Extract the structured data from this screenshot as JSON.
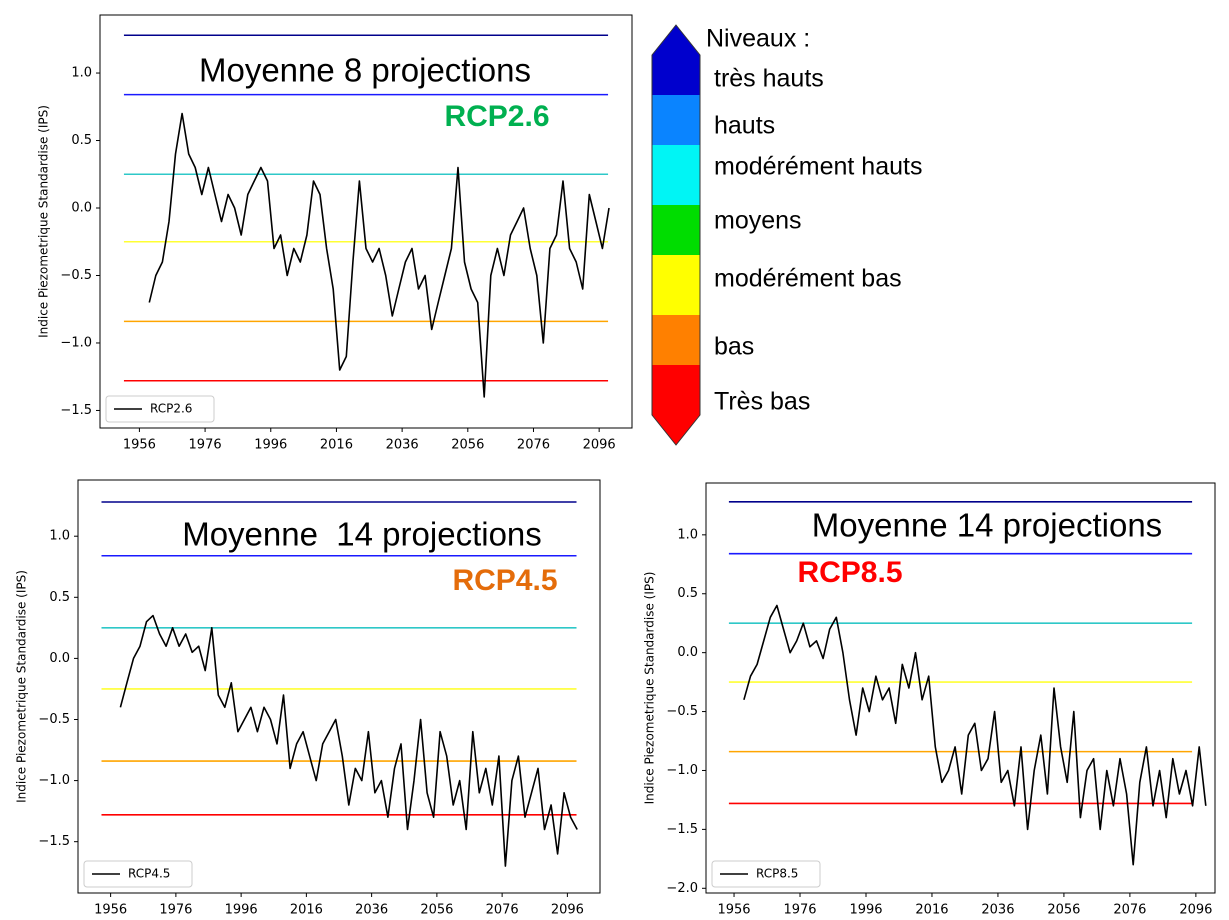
{
  "chart_data": [
    {
      "type": "line",
      "title": "Moyenne 8 projections",
      "annotation": {
        "text": "RCP2.6",
        "color": "#00b050"
      },
      "y_label": "Indice Piezometrique Standardise (IPS)",
      "legend": "lower left",
      "grid": false,
      "xlim": [
        1944,
        2106
      ],
      "xticks": [
        1956,
        1976,
        1996,
        2016,
        2036,
        2056,
        2076,
        2096
      ],
      "ylim": [
        -1.63,
        1.43
      ],
      "yticks": [
        {
          "value": -1.5,
          "label": "−1.5"
        },
        {
          "value": -1,
          "label": "−1.0"
        },
        {
          "value": -0.5,
          "label": "−0.5"
        },
        {
          "value": 0,
          "label": "0.0"
        },
        0.5,
        {
          "value": 1,
          "label": "1.0"
        }
      ],
      "hlines": [
        {
          "value": 1.28,
          "color": "#00008b"
        },
        {
          "value": 0.84,
          "color": "#1a1aff"
        },
        {
          "value": 0.25,
          "color": "#2ec8c8"
        },
        {
          "value": -0.25,
          "color": "#ffff33"
        },
        {
          "value": -0.84,
          "color": "#ffa500"
        },
        {
          "value": -1.28,
          "color": "#ff0000"
        }
      ],
      "x": [
        1959,
        1961,
        1963,
        1965,
        1967,
        1969,
        1971,
        1973,
        1975,
        1977,
        1979,
        1981,
        1983,
        1985,
        1987,
        1989,
        1991,
        1993,
        1995,
        1997,
        1999,
        2001,
        2003,
        2005,
        2007,
        2009,
        2011,
        2013,
        2015,
        2017,
        2019,
        2021,
        2023,
        2025,
        2027,
        2029,
        2031,
        2033,
        2035,
        2037,
        2039,
        2041,
        2043,
        2045,
        2047,
        2049,
        2051,
        2053,
        2055,
        2057,
        2059,
        2061,
        2063,
        2065,
        2067,
        2069,
        2071,
        2073,
        2075,
        2077,
        2079,
        2081,
        2083,
        2085,
        2087,
        2089,
        2091,
        2093,
        2095,
        2097,
        2099
      ],
      "series": [
        {
          "name": "RCP2.6",
          "color": "#000000",
          "values": [
            -0.7,
            -0.5,
            -0.4,
            -0.1,
            0.4,
            0.7,
            0.4,
            0.3,
            0.1,
            0.3,
            0.1,
            -0.1,
            0.1,
            0.0,
            -0.2,
            0.1,
            0.2,
            0.3,
            0.2,
            -0.3,
            -0.2,
            -0.5,
            -0.3,
            -0.4,
            -0.2,
            0.2,
            0.1,
            -0.3,
            -0.6,
            -1.2,
            -1.1,
            -0.4,
            0.2,
            -0.3,
            -0.4,
            -0.3,
            -0.5,
            -0.8,
            -0.6,
            -0.4,
            -0.3,
            -0.6,
            -0.5,
            -0.9,
            -0.7,
            -0.5,
            -0.3,
            0.3,
            -0.4,
            -0.6,
            -0.7,
            -1.4,
            -0.5,
            -0.3,
            -0.5,
            -0.2,
            -0.1,
            0.0,
            -0.3,
            -0.5,
            -1.0,
            -0.3,
            -0.2,
            0.2,
            -0.3,
            -0.4,
            -0.6,
            0.1,
            -0.1,
            -0.3,
            0.0
          ]
        }
      ]
    },
    {
      "type": "line",
      "title": "Moyenne  14 projections",
      "annotation": {
        "text": "RCP4.5",
        "color": "#e46c0a"
      },
      "y_label": "Indice Piezometrique Standardise (IPS)",
      "legend": "lower left",
      "grid": false,
      "xlim": [
        1946,
        2106
      ],
      "xticks": [
        1956,
        1976,
        1996,
        2016,
        2036,
        2056,
        2076,
        2096
      ],
      "ylim": [
        -1.92,
        1.46
      ],
      "yticks": [
        {
          "value": -1.5,
          "label": "−1.5"
        },
        {
          "value": -1,
          "label": "−1.0"
        },
        {
          "value": -0.5,
          "label": "−0.5"
        },
        {
          "value": 0,
          "label": "0.0"
        },
        0.5,
        {
          "value": 1,
          "label": "1.0"
        }
      ],
      "hlines": [
        {
          "value": 1.28,
          "color": "#00008b"
        },
        {
          "value": 0.84,
          "color": "#1a1aff"
        },
        {
          "value": 0.25,
          "color": "#2ec8c8"
        },
        {
          "value": -0.25,
          "color": "#ffff33"
        },
        {
          "value": -0.84,
          "color": "#ffa500"
        },
        {
          "value": -1.28,
          "color": "#ff0000"
        }
      ],
      "x": [
        1959,
        1961,
        1963,
        1965,
        1967,
        1969,
        1971,
        1973,
        1975,
        1977,
        1979,
        1981,
        1983,
        1985,
        1987,
        1989,
        1991,
        1993,
        1995,
        1997,
        1999,
        2001,
        2003,
        2005,
        2007,
        2009,
        2011,
        2013,
        2015,
        2017,
        2019,
        2021,
        2023,
        2025,
        2027,
        2029,
        2031,
        2033,
        2035,
        2037,
        2039,
        2041,
        2043,
        2045,
        2047,
        2049,
        2051,
        2053,
        2055,
        2057,
        2059,
        2061,
        2063,
        2065,
        2067,
        2069,
        2071,
        2073,
        2075,
        2077,
        2079,
        2081,
        2083,
        2085,
        2087,
        2089,
        2091,
        2093,
        2095,
        2097,
        2099
      ],
      "series": [
        {
          "name": "RCP4.5",
          "color": "#000000",
          "values": [
            -0.4,
            -0.2,
            0.0,
            0.1,
            0.3,
            0.35,
            0.2,
            0.1,
            0.25,
            0.1,
            0.2,
            0.05,
            0.1,
            -0.1,
            0.25,
            -0.3,
            -0.4,
            -0.2,
            -0.6,
            -0.5,
            -0.4,
            -0.6,
            -0.4,
            -0.5,
            -0.7,
            -0.3,
            -0.9,
            -0.7,
            -0.6,
            -0.8,
            -1.0,
            -0.7,
            -0.6,
            -0.5,
            -0.8,
            -1.2,
            -0.9,
            -1.0,
            -0.6,
            -1.1,
            -1.0,
            -1.3,
            -0.9,
            -0.7,
            -1.4,
            -1.0,
            -0.5,
            -1.1,
            -1.3,
            -0.6,
            -0.8,
            -1.2,
            -1.0,
            -1.4,
            -0.6,
            -1.1,
            -0.9,
            -1.2,
            -0.8,
            -1.7,
            -1.0,
            -0.8,
            -1.3,
            -1.1,
            -0.9,
            -1.4,
            -1.2,
            -1.6,
            -1.1,
            -1.3,
            -1.4
          ]
        }
      ]
    },
    {
      "type": "line",
      "title": "Moyenne 14 projections",
      "annotation": {
        "text": "RCP8.5",
        "color": "#ff0000"
      },
      "y_label": "Indice Piezometrique Standardise (IPS)",
      "legend": "lower left",
      "grid": false,
      "xlim": [
        1947.5,
        2101.8
      ],
      "xticks": [
        1956,
        1976,
        1996,
        2016,
        2036,
        2056,
        2076,
        2096
      ],
      "ylim": [
        -2.04,
        1.44
      ],
      "yticks": [
        {
          "value": -2,
          "label": "−2.0"
        },
        {
          "value": -1.5,
          "label": "−1.5"
        },
        {
          "value": -1,
          "label": "−1.0"
        },
        {
          "value": -0.5,
          "label": "−0.5"
        },
        {
          "value": 0,
          "label": "0.0"
        },
        0.5,
        {
          "value": 1,
          "label": "1.0"
        }
      ],
      "hlines": [
        {
          "value": 1.28,
          "color": "#00008b"
        },
        {
          "value": 0.84,
          "color": "#1a1aff"
        },
        {
          "value": 0.25,
          "color": "#2ec8c8"
        },
        {
          "value": -0.25,
          "color": "#ffff33"
        },
        {
          "value": -0.84,
          "color": "#ffa500"
        },
        {
          "value": -1.28,
          "color": "#ff0000"
        }
      ],
      "x": [
        1959,
        1961,
        1963,
        1965,
        1967,
        1969,
        1971,
        1973,
        1975,
        1977,
        1979,
        1981,
        1983,
        1985,
        1987,
        1989,
        1991,
        1993,
        1995,
        1997,
        1999,
        2001,
        2003,
        2005,
        2007,
        2009,
        2011,
        2013,
        2015,
        2017,
        2019,
        2021,
        2023,
        2025,
        2027,
        2029,
        2031,
        2033,
        2035,
        2037,
        2039,
        2041,
        2043,
        2045,
        2047,
        2049,
        2051,
        2053,
        2055,
        2057,
        2059,
        2061,
        2063,
        2065,
        2067,
        2069,
        2071,
        2073,
        2075,
        2077,
        2079,
        2081,
        2083,
        2085,
        2087,
        2089,
        2091,
        2093,
        2095,
        2097,
        2099
      ],
      "series": [
        {
          "name": "RCP8.5",
          "color": "#000000",
          "values": [
            -0.4,
            -0.2,
            -0.1,
            0.1,
            0.3,
            0.4,
            0.2,
            0.0,
            0.1,
            0.25,
            0.05,
            0.1,
            -0.05,
            0.2,
            0.3,
            0.0,
            -0.4,
            -0.7,
            -0.3,
            -0.5,
            -0.2,
            -0.4,
            -0.3,
            -0.6,
            -0.1,
            -0.3,
            0.0,
            -0.4,
            -0.2,
            -0.8,
            -1.1,
            -1.0,
            -0.8,
            -1.2,
            -0.7,
            -0.6,
            -1.0,
            -0.9,
            -0.5,
            -1.1,
            -1.0,
            -1.3,
            -0.8,
            -1.5,
            -1.0,
            -0.7,
            -1.2,
            -0.3,
            -0.8,
            -1.1,
            -0.5,
            -1.4,
            -1.0,
            -0.9,
            -1.5,
            -1.0,
            -1.3,
            -0.9,
            -1.2,
            -1.8,
            -1.1,
            -0.8,
            -1.3,
            -1.0,
            -1.4,
            -0.9,
            -1.2,
            -1.0,
            -1.3,
            -0.8,
            -1.3
          ]
        }
      ]
    }
  ],
  "levels": {
    "title": "Niveaux :",
    "items": [
      {
        "label": "très hauts",
        "color": "#0000cd"
      },
      {
        "label": "hauts",
        "color": "#0a84ff"
      },
      {
        "label": "modérément hauts",
        "color": "#00f5f5"
      },
      {
        "label": "moyens",
        "color": "#00dd00"
      },
      {
        "label": "modérément bas",
        "color": "#ffff00"
      },
      {
        "label": "bas",
        "color": "#ff8000"
      },
      {
        "label": "Très bas",
        "color": "#ff0000"
      }
    ]
  }
}
